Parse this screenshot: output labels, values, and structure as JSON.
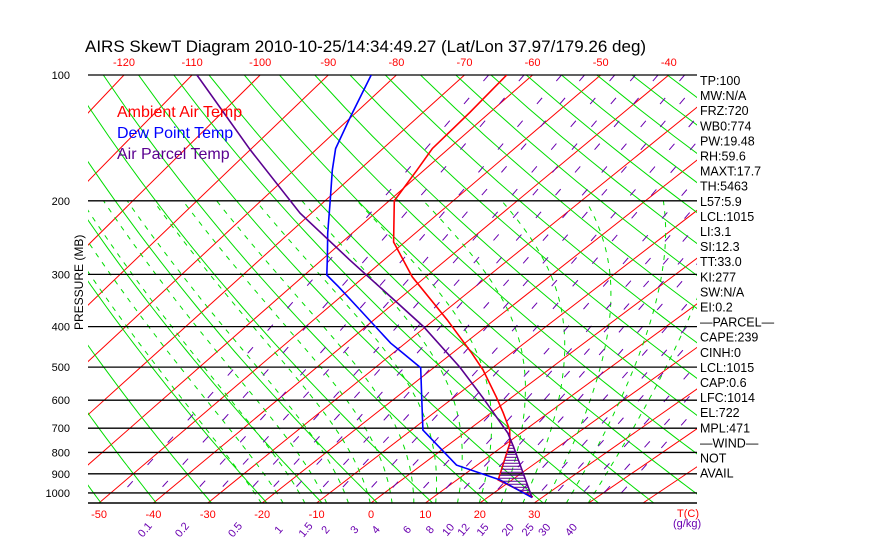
{
  "chart_data": {
    "type": "line",
    "title": "AIRS SkewT Diagram 2010-10-25/14:34:49.27 (Lat/Lon 37.97/179.26 deg)",
    "ylabel": "PRESSURE (MB)",
    "xlabel": "T(C)",
    "mixing_ratio_unit": "(g/kg)",
    "ylim": [
      1050,
      100
    ],
    "pressure_ticks": [
      "100",
      "200",
      "300",
      "400",
      "500",
      "600",
      "700",
      "800",
      "900",
      "1000"
    ],
    "pressure_values": [
      100,
      200,
      300,
      400,
      500,
      600,
      700,
      800,
      900,
      1000
    ],
    "top_temp_ticks": [
      -120,
      -110,
      -100,
      -90,
      -80,
      -70,
      -60,
      -50,
      -40
    ],
    "bottom_temp_ticks": [
      -50,
      -40,
      -30,
      -20,
      -10,
      0,
      10,
      20,
      30
    ],
    "mixing_ratio_labels": [
      "0.1",
      "0.2",
      "0.5",
      "1",
      "1.5",
      "2",
      "3",
      "4",
      "6",
      "8",
      "10",
      "12",
      "15",
      "20",
      "25",
      "30",
      "40"
    ],
    "legend": [
      {
        "label": "Ambient Air Temp",
        "color": "#ff0000"
      },
      {
        "label": "Dew Point Temp",
        "color": "#0000ff"
      },
      {
        "label": "Air Parcel Temp",
        "color": "#5a0090"
      }
    ],
    "series": [
      {
        "name": "Ambient Air Temp",
        "color": "#ff0000",
        "pressure": [
          100,
          123,
          150,
          169,
          200,
          251,
          304,
          385,
          463,
          508,
          590,
          643,
          707,
          760,
          931,
          1023
        ],
        "temperature": [
          -63.8,
          -63.0,
          -62.5,
          -61.1,
          -59.2,
          -51.8,
          -42.2,
          -27.9,
          -16.7,
          -11.1,
          -2.7,
          2.1,
          7.3,
          10.5,
          17.5,
          28.2
        ]
      },
      {
        "name": "Dew Point Temp",
        "color": "#0000ff",
        "pressure": [
          100,
          127,
          150,
          169,
          200,
          239,
          272,
          301,
          321,
          371,
          438,
          463,
          502,
          599,
          707,
          748,
          858,
          931,
          1026
        ],
        "temperature": [
          -83.7,
          -80.0,
          -77.2,
          -74.1,
          -69.2,
          -63.9,
          -59.7,
          -56.4,
          -52.3,
          -43.2,
          -32.5,
          -28.3,
          -22.2,
          -15.0,
          -8.0,
          -3.9,
          6.3,
          17.8,
          28.2
        ]
      },
      {
        "name": "Air Parcel Temp",
        "color": "#5a0090",
        "pressure": [
          100,
          151,
          214,
          277,
          351,
          400,
          500,
          590,
          719,
          775,
          1026
        ],
        "temperature": [
          -109.3,
          -90.0,
          -71.8,
          -55.5,
          -39.5,
          -30.4,
          -15.7,
          -5.1,
          7.7,
          12.0,
          28.2
        ]
      }
    ],
    "grid": true,
    "legend_position": "top-left"
  },
  "stats": [
    "TP:100",
    "MW:N/A",
    "FRZ:720",
    "WB0:774",
    "PW:19.48",
    "RH:59.6",
    "MAXT:17.7",
    "TH:5463",
    "L57:5.9",
    "LCL:1015",
    "LI:3.1",
    "SI:12.3",
    "TT:33.0",
    "KI:277",
    "SW:N/A",
    "EI:0.2",
    "—PARCEL—",
    "CAPE:239",
    "CINH:0",
    "LCL:1015",
    "CAP:0.6",
    "LFC:1014",
    "EL:722",
    "MPL:471",
    "—WIND—",
    "NOT",
    "AVAIL"
  ],
  "colors": {
    "isotherm": "#ff0000",
    "dry_adiabat": "#00dd00",
    "moist_adiabat": "#00dd00",
    "mixing_ratio": "#6a00b0",
    "isobar": "#000000"
  }
}
